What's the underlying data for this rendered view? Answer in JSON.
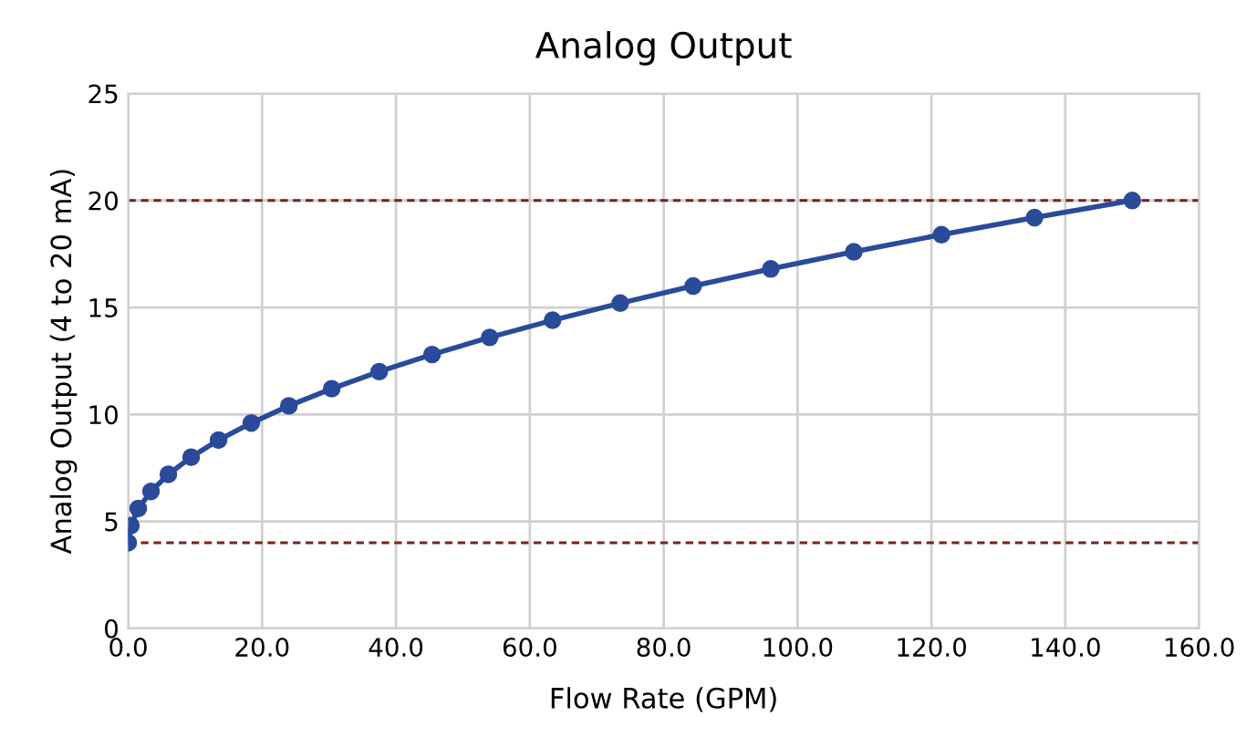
{
  "chart_data": {
    "type": "line",
    "title": "Analog Output",
    "xlabel": "Flow Rate (GPM)",
    "ylabel": "Analog Output (4 to 20 mA)",
    "x": [
      0,
      0.4,
      1.5,
      3.4,
      6,
      9.4,
      13.5,
      18.4,
      24,
      30.4,
      37.5,
      45.4,
      54,
      63.4,
      73.5,
      84.4,
      96,
      108.4,
      121.5,
      135.4,
      150
    ],
    "series": [
      {
        "color": "#2a4a9a",
        "values": [
          4,
          4.8,
          5.6,
          6.4,
          7.2,
          8,
          8.8,
          9.6,
          10.4,
          11.2,
          12,
          12.8,
          13.6,
          14.4,
          15.2,
          16,
          16.8,
          17.6,
          18.4,
          19.2,
          20
        ]
      }
    ],
    "xlim": [
      0,
      160
    ],
    "xticks": [
      {
        "value": 0,
        "label": "0.0"
      },
      {
        "value": 20,
        "label": "20.0"
      },
      {
        "value": 40,
        "label": "40.0"
      },
      {
        "value": 60,
        "label": "60.0"
      },
      {
        "value": 80,
        "label": "80.0"
      },
      {
        "value": 100,
        "label": "100.0"
      },
      {
        "value": 120,
        "label": "120.0"
      },
      {
        "value": 140,
        "label": "140.0"
      },
      {
        "value": 160,
        "label": "160.0"
      }
    ],
    "ylim": [
      0,
      25
    ],
    "yticks": [
      0,
      5,
      10,
      15,
      20,
      25
    ],
    "ref_lines": [
      {
        "axis": "y",
        "value": 20,
        "color": "#7b2020",
        "line_style": "dashed"
      },
      {
        "axis": "y",
        "value": 4,
        "color": "#7b2020",
        "line_style": "dashed"
      }
    ],
    "grid": true,
    "marker": "circle",
    "line_style": "solid"
  }
}
